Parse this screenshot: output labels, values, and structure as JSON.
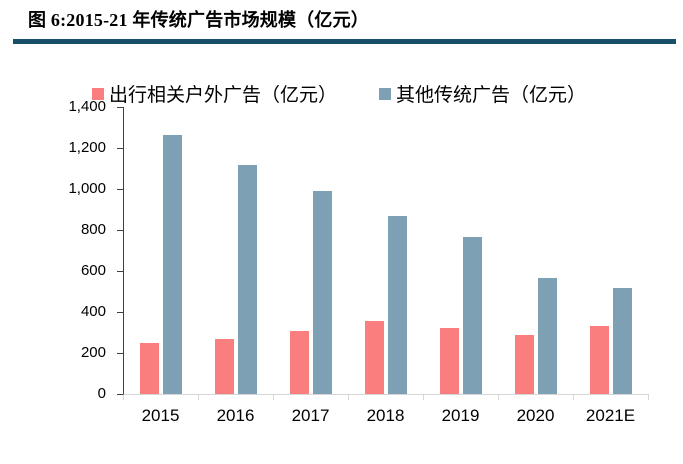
{
  "header": {
    "title": "图 6:2015-21 年传统广告市场规模（亿元）"
  },
  "colors": {
    "accent_rule": "#174F6B",
    "series_red": "#FB7E7E",
    "series_blue": "#7EA0B4",
    "axis_line": "#3F3F3F",
    "baseline": "#D6D6D6",
    "text": "#000000"
  },
  "chart_data": {
    "type": "bar",
    "title": "图 6:2015-21 年传统广告市场规模（亿元）",
    "categories": [
      "2015",
      "2016",
      "2017",
      "2018",
      "2019",
      "2020",
      "2021E"
    ],
    "series": [
      {
        "name": "出行相关户外广告（亿元）",
        "key": "travel-outdoor-ads",
        "color": "#FB7E7E",
        "values": [
          250,
          270,
          305,
          355,
          320,
          290,
          330
        ]
      },
      {
        "name": "其他传统广告（亿元）",
        "key": "other-traditional-ads",
        "color": "#7EA0B4",
        "values": [
          1265,
          1115,
          990,
          870,
          765,
          565,
          515
        ]
      }
    ],
    "xlabel": "",
    "ylabel": "",
    "ylim": [
      0,
      1400
    ],
    "ytick_step": 200,
    "ytick_labels": [
      "0",
      "200",
      "400",
      "600",
      "800",
      "1,000",
      "1,200",
      "1,400"
    ],
    "grid": false,
    "legend_position": "top"
  }
}
